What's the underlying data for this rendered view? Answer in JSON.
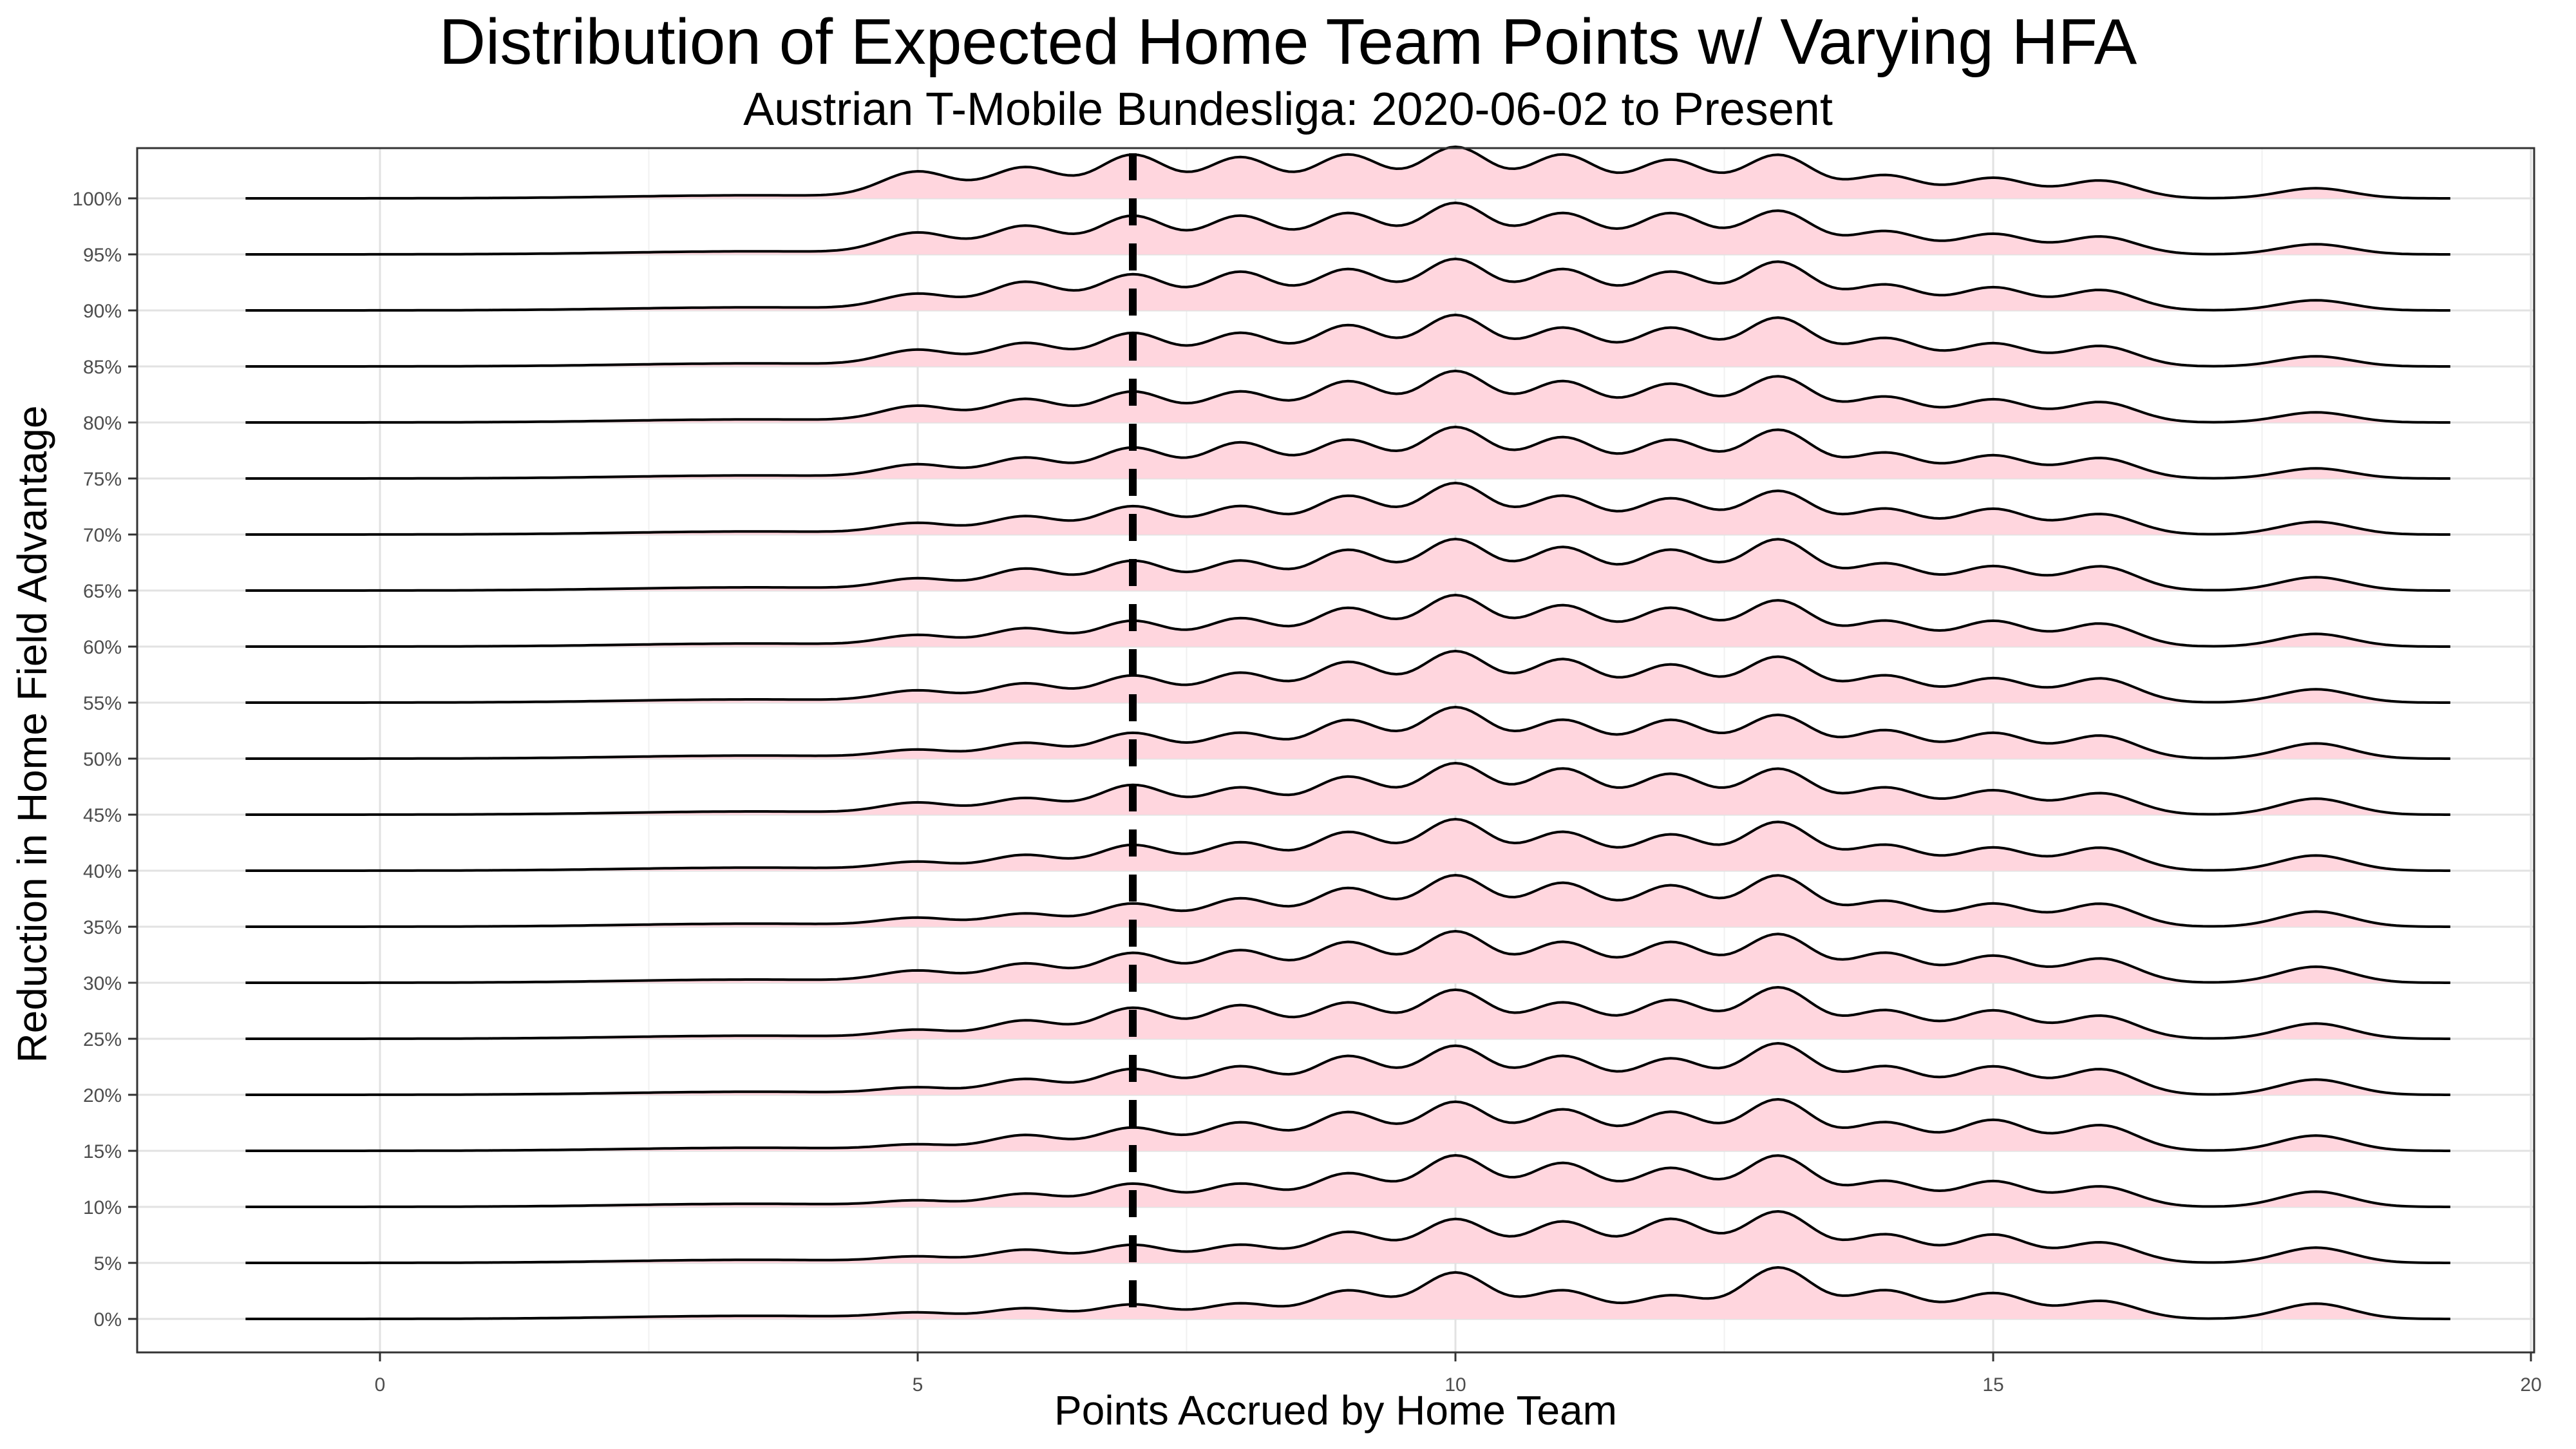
{
  "chart_data": {
    "type": "ridgeline",
    "title": "Distribution of Expected Home Team Points w/ Varying HFA",
    "subtitle": "Austrian T-Mobile Bundesliga: 2020-06-02 to Present",
    "xlabel": "Points Accrued by Home Team",
    "ylabel": "Reduction in Home Field Advantage",
    "xlim": [
      -2.3,
      20.2
    ],
    "x_ticks": [
      0,
      5,
      10,
      15,
      20
    ],
    "y_categories": [
      "0%",
      "5%",
      "10%",
      "15%",
      "20%",
      "25%",
      "30%",
      "35%",
      "40%",
      "45%",
      "50%",
      "55%",
      "60%",
      "65%",
      "70%",
      "75%",
      "80%",
      "85%",
      "90%",
      "95%",
      "100%"
    ],
    "density_range": [
      -1.25,
      19.25
    ],
    "reference_line": {
      "x": 7,
      "style": "dashed"
    },
    "fill_color": "#ffd6de",
    "line_color": "#000000",
    "grid": true,
    "density_peaks": [
      {
        "label": "0%",
        "peaks": [
          [
            5.0,
            0.1
          ],
          [
            6.0,
            0.2
          ],
          [
            7.0,
            0.28
          ],
          [
            8.0,
            0.3
          ],
          [
            9.0,
            0.55
          ],
          [
            10.0,
            0.9
          ],
          [
            11.0,
            0.55
          ],
          [
            12.0,
            0.45
          ],
          [
            13.0,
            1.0
          ],
          [
            14.0,
            0.55
          ],
          [
            15.0,
            0.5
          ],
          [
            16.0,
            0.35
          ],
          [
            18.0,
            0.3
          ]
        ]
      },
      {
        "label": "5%",
        "peaks": [
          [
            5.0,
            0.1
          ],
          [
            6.0,
            0.25
          ],
          [
            7.0,
            0.35
          ],
          [
            8.0,
            0.35
          ],
          [
            9.0,
            0.6
          ],
          [
            10.0,
            0.85
          ],
          [
            11.0,
            0.8
          ],
          [
            12.0,
            0.85
          ],
          [
            13.0,
            1.0
          ],
          [
            14.0,
            0.55
          ],
          [
            15.0,
            0.55
          ],
          [
            16.0,
            0.4
          ],
          [
            18.0,
            0.3
          ]
        ]
      },
      {
        "label": "10%",
        "peaks": [
          [
            5.0,
            0.1
          ],
          [
            6.0,
            0.25
          ],
          [
            7.0,
            0.45
          ],
          [
            8.0,
            0.45
          ],
          [
            9.0,
            0.65
          ],
          [
            10.0,
            1.0
          ],
          [
            11.0,
            0.85
          ],
          [
            12.0,
            0.75
          ],
          [
            13.0,
            1.0
          ],
          [
            14.0,
            0.5
          ],
          [
            15.0,
            0.5
          ],
          [
            16.0,
            0.4
          ],
          [
            18.0,
            0.3
          ]
        ]
      },
      {
        "label": "15%",
        "peaks": [
          [
            5.0,
            0.1
          ],
          [
            6.0,
            0.3
          ],
          [
            7.0,
            0.45
          ],
          [
            8.0,
            0.55
          ],
          [
            9.0,
            0.75
          ],
          [
            10.0,
            0.95
          ],
          [
            11.0,
            0.8
          ],
          [
            12.0,
            0.75
          ],
          [
            13.0,
            1.0
          ],
          [
            14.0,
            0.55
          ],
          [
            15.0,
            0.6
          ],
          [
            16.0,
            0.5
          ],
          [
            18.0,
            0.3
          ]
        ]
      },
      {
        "label": "20%",
        "peaks": [
          [
            5.0,
            0.12
          ],
          [
            6.0,
            0.3
          ],
          [
            7.0,
            0.5
          ],
          [
            8.0,
            0.55
          ],
          [
            9.0,
            0.75
          ],
          [
            10.0,
            0.95
          ],
          [
            11.0,
            0.75
          ],
          [
            12.0,
            0.7
          ],
          [
            13.0,
            1.0
          ],
          [
            14.0,
            0.55
          ],
          [
            15.0,
            0.55
          ],
          [
            16.0,
            0.5
          ],
          [
            18.0,
            0.3
          ]
        ]
      },
      {
        "label": "25%",
        "peaks": [
          [
            5.0,
            0.15
          ],
          [
            6.0,
            0.35
          ],
          [
            7.0,
            0.6
          ],
          [
            8.0,
            0.65
          ],
          [
            9.0,
            0.7
          ],
          [
            10.0,
            0.95
          ],
          [
            11.0,
            0.7
          ],
          [
            12.0,
            0.75
          ],
          [
            13.0,
            1.0
          ],
          [
            14.0,
            0.55
          ],
          [
            15.0,
            0.55
          ],
          [
            16.0,
            0.45
          ],
          [
            18.0,
            0.3
          ]
        ]
      },
      {
        "label": "30%",
        "peaks": [
          [
            5.0,
            0.2
          ],
          [
            6.0,
            0.35
          ],
          [
            7.0,
            0.55
          ],
          [
            8.0,
            0.6
          ],
          [
            9.0,
            0.75
          ],
          [
            10.0,
            0.95
          ],
          [
            11.0,
            0.75
          ],
          [
            12.0,
            0.75
          ],
          [
            13.0,
            0.9
          ],
          [
            14.0,
            0.55
          ],
          [
            15.0,
            0.5
          ],
          [
            16.0,
            0.45
          ],
          [
            18.0,
            0.3
          ]
        ]
      },
      {
        "label": "35%",
        "peaks": [
          [
            5.0,
            0.15
          ],
          [
            6.0,
            0.25
          ],
          [
            7.0,
            0.45
          ],
          [
            8.0,
            0.55
          ],
          [
            9.0,
            0.75
          ],
          [
            10.0,
            1.0
          ],
          [
            11.0,
            0.85
          ],
          [
            12.0,
            0.8
          ],
          [
            13.0,
            1.0
          ],
          [
            14.0,
            0.5
          ],
          [
            15.0,
            0.45
          ],
          [
            16.0,
            0.45
          ],
          [
            18.0,
            0.3
          ]
        ]
      },
      {
        "label": "40%",
        "peaks": [
          [
            5.0,
            0.15
          ],
          [
            6.0,
            0.3
          ],
          [
            7.0,
            0.5
          ],
          [
            8.0,
            0.55
          ],
          [
            9.0,
            0.75
          ],
          [
            10.0,
            1.0
          ],
          [
            11.0,
            0.75
          ],
          [
            12.0,
            0.7
          ],
          [
            13.0,
            0.95
          ],
          [
            14.0,
            0.5
          ],
          [
            15.0,
            0.45
          ],
          [
            16.0,
            0.45
          ],
          [
            18.0,
            0.3
          ]
        ]
      },
      {
        "label": "45%",
        "peaks": [
          [
            5.0,
            0.2
          ],
          [
            6.0,
            0.3
          ],
          [
            7.0,
            0.55
          ],
          [
            8.0,
            0.5
          ],
          [
            9.0,
            0.7
          ],
          [
            10.0,
            0.95
          ],
          [
            11.0,
            0.85
          ],
          [
            12.0,
            0.75
          ],
          [
            13.0,
            0.85
          ],
          [
            14.0,
            0.5
          ],
          [
            15.0,
            0.45
          ],
          [
            16.0,
            0.4
          ],
          [
            18.0,
            0.3
          ]
        ]
      },
      {
        "label": "50%",
        "peaks": [
          [
            5.0,
            0.15
          ],
          [
            6.0,
            0.3
          ],
          [
            7.0,
            0.5
          ],
          [
            8.0,
            0.5
          ],
          [
            9.0,
            0.75
          ],
          [
            10.0,
            1.0
          ],
          [
            11.0,
            0.75
          ],
          [
            12.0,
            0.75
          ],
          [
            13.0,
            0.85
          ],
          [
            14.0,
            0.55
          ],
          [
            15.0,
            0.5
          ],
          [
            16.0,
            0.45
          ],
          [
            18.0,
            0.3
          ]
        ]
      },
      {
        "label": "55%",
        "peaks": [
          [
            5.0,
            0.2
          ],
          [
            6.0,
            0.35
          ],
          [
            7.0,
            0.5
          ],
          [
            8.0,
            0.55
          ],
          [
            9.0,
            0.75
          ],
          [
            10.0,
            0.95
          ],
          [
            11.0,
            0.8
          ],
          [
            12.0,
            0.7
          ],
          [
            13.0,
            0.85
          ],
          [
            14.0,
            0.5
          ],
          [
            15.0,
            0.45
          ],
          [
            16.0,
            0.45
          ],
          [
            18.0,
            0.25
          ]
        ]
      },
      {
        "label": "60%",
        "peaks": [
          [
            5.0,
            0.2
          ],
          [
            6.0,
            0.35
          ],
          [
            7.0,
            0.5
          ],
          [
            8.0,
            0.55
          ],
          [
            9.0,
            0.75
          ],
          [
            10.0,
            1.0
          ],
          [
            11.0,
            0.8
          ],
          [
            12.0,
            0.75
          ],
          [
            13.0,
            0.9
          ],
          [
            14.0,
            0.5
          ],
          [
            15.0,
            0.5
          ],
          [
            16.0,
            0.45
          ],
          [
            18.0,
            0.25
          ]
        ]
      },
      {
        "label": "65%",
        "peaks": [
          [
            5.0,
            0.2
          ],
          [
            6.0,
            0.4
          ],
          [
            7.0,
            0.55
          ],
          [
            8.0,
            0.55
          ],
          [
            9.0,
            0.75
          ],
          [
            10.0,
            0.95
          ],
          [
            11.0,
            0.8
          ],
          [
            12.0,
            0.75
          ],
          [
            13.0,
            0.95
          ],
          [
            14.0,
            0.5
          ],
          [
            15.0,
            0.45
          ],
          [
            16.0,
            0.45
          ],
          [
            18.0,
            0.25
          ]
        ]
      },
      {
        "label": "70%",
        "peaks": [
          [
            5.0,
            0.2
          ],
          [
            6.0,
            0.35
          ],
          [
            7.0,
            0.55
          ],
          [
            8.0,
            0.55
          ],
          [
            9.0,
            0.75
          ],
          [
            10.0,
            1.0
          ],
          [
            11.0,
            0.75
          ],
          [
            12.0,
            0.7
          ],
          [
            13.0,
            0.85
          ],
          [
            14.0,
            0.5
          ],
          [
            15.0,
            0.5
          ],
          [
            16.0,
            0.4
          ],
          [
            18.0,
            0.25
          ]
        ]
      },
      {
        "label": "75%",
        "peaks": [
          [
            5.0,
            0.25
          ],
          [
            6.0,
            0.4
          ],
          [
            7.0,
            0.6
          ],
          [
            8.0,
            0.7
          ],
          [
            9.0,
            0.75
          ],
          [
            10.0,
            1.0
          ],
          [
            11.0,
            0.8
          ],
          [
            12.0,
            0.75
          ],
          [
            13.0,
            0.95
          ],
          [
            14.0,
            0.5
          ],
          [
            15.0,
            0.45
          ],
          [
            16.0,
            0.4
          ],
          [
            18.0,
            0.2
          ]
        ]
      },
      {
        "label": "80%",
        "peaks": [
          [
            5.0,
            0.3
          ],
          [
            6.0,
            0.45
          ],
          [
            7.0,
            0.6
          ],
          [
            8.0,
            0.6
          ],
          [
            9.0,
            0.8
          ],
          [
            10.0,
            1.0
          ],
          [
            11.0,
            0.8
          ],
          [
            12.0,
            0.75
          ],
          [
            13.0,
            0.9
          ],
          [
            14.0,
            0.5
          ],
          [
            15.0,
            0.45
          ],
          [
            16.0,
            0.4
          ],
          [
            18.0,
            0.2
          ]
        ]
      },
      {
        "label": "85%",
        "peaks": [
          [
            5.0,
            0.3
          ],
          [
            6.0,
            0.45
          ],
          [
            7.0,
            0.65
          ],
          [
            8.0,
            0.65
          ],
          [
            9.0,
            0.8
          ],
          [
            10.0,
            1.0
          ],
          [
            11.0,
            0.75
          ],
          [
            12.0,
            0.75
          ],
          [
            13.0,
            0.95
          ],
          [
            14.0,
            0.55
          ],
          [
            15.0,
            0.45
          ],
          [
            16.0,
            0.4
          ],
          [
            18.0,
            0.2
          ]
        ]
      },
      {
        "label": "90%",
        "peaks": [
          [
            5.0,
            0.3
          ],
          [
            6.0,
            0.55
          ],
          [
            7.0,
            0.7
          ],
          [
            8.0,
            0.75
          ],
          [
            9.0,
            0.8
          ],
          [
            10.0,
            1.0
          ],
          [
            11.0,
            0.8
          ],
          [
            12.0,
            0.75
          ],
          [
            13.0,
            0.95
          ],
          [
            14.0,
            0.5
          ],
          [
            15.0,
            0.45
          ],
          [
            16.0,
            0.4
          ],
          [
            18.0,
            0.2
          ]
        ]
      },
      {
        "label": "95%",
        "peaks": [
          [
            5.0,
            0.4
          ],
          [
            6.0,
            0.55
          ],
          [
            7.0,
            0.75
          ],
          [
            8.0,
            0.75
          ],
          [
            9.0,
            0.8
          ],
          [
            10.0,
            1.0
          ],
          [
            11.0,
            0.8
          ],
          [
            12.0,
            0.8
          ],
          [
            13.0,
            0.85
          ],
          [
            14.0,
            0.45
          ],
          [
            15.0,
            0.4
          ],
          [
            16.0,
            0.35
          ],
          [
            18.0,
            0.2
          ]
        ]
      },
      {
        "label": "100%",
        "peaks": [
          [
            5.0,
            0.5
          ],
          [
            6.0,
            0.6
          ],
          [
            7.0,
            0.85
          ],
          [
            8.0,
            0.8
          ],
          [
            9.0,
            0.85
          ],
          [
            10.0,
            1.0
          ],
          [
            11.0,
            0.85
          ],
          [
            12.0,
            0.75
          ],
          [
            13.0,
            0.85
          ],
          [
            14.0,
            0.45
          ],
          [
            15.0,
            0.4
          ],
          [
            16.0,
            0.35
          ],
          [
            18.0,
            0.2
          ]
        ]
      }
    ]
  }
}
